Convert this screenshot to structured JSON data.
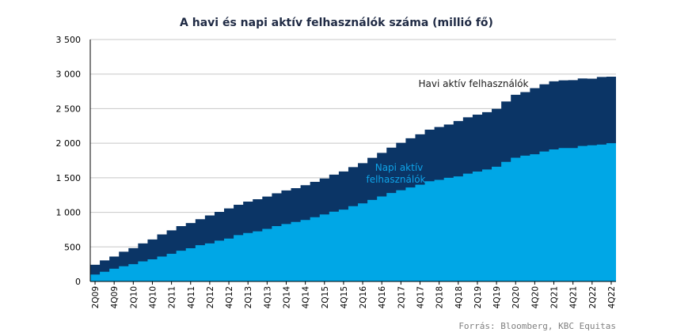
{
  "colors": {
    "mau": "#0b3566",
    "dau": "#00a7e6",
    "grid": "#c8c8c8"
  },
  "chart_data": {
    "type": "area",
    "title": "A havi és napi aktív felhasználók száma (millió fő)",
    "source": "Forrás: Bloomberg, KBC Equitas",
    "ylim": [
      0,
      3500
    ],
    "yticks": [
      "0",
      "500",
      "1 000",
      "1 500",
      "2 000",
      "2 500",
      "3 000",
      "3 500"
    ],
    "ytick_values": [
      0,
      500,
      1000,
      1500,
      2000,
      2500,
      3000,
      3500
    ],
    "x": [
      "2Q09",
      "3Q09",
      "4Q09",
      "1Q10",
      "2Q10",
      "3Q10",
      "4Q10",
      "1Q11",
      "2Q11",
      "3Q11",
      "4Q11",
      "1Q12",
      "2Q12",
      "3Q12",
      "4Q12",
      "1Q13",
      "2Q13",
      "3Q13",
      "4Q13",
      "1Q14",
      "2Q14",
      "3Q14",
      "4Q14",
      "1Q15",
      "2Q15",
      "3Q15",
      "4Q15",
      "1Q16",
      "2Q16",
      "3Q16",
      "4Q16",
      "1Q17",
      "2Q17",
      "3Q17",
      "4Q17",
      "1Q18",
      "2Q18",
      "3Q18",
      "4Q18",
      "1Q19",
      "2Q19",
      "3Q19",
      "4Q19",
      "1Q20",
      "2Q20",
      "3Q20",
      "4Q20",
      "1Q21",
      "2Q21",
      "3Q21",
      "4Q21",
      "1Q22",
      "2Q22",
      "3Q22",
      "4Q22"
    ],
    "xtick_labels": [
      "2Q09",
      "4Q09",
      "2Q10",
      "4Q10",
      "2Q11",
      "4Q11",
      "2Q12",
      "4Q12",
      "2Q13",
      "4Q13",
      "2Q14",
      "4Q14",
      "2Q15",
      "4Q15",
      "2Q16",
      "4Q16",
      "2Q17",
      "4Q17",
      "2Q18",
      "4Q18",
      "2Q19",
      "4Q19",
      "2Q20",
      "4Q20",
      "2Q21",
      "4Q21",
      "2Q22",
      "4Q22"
    ],
    "series": [
      {
        "name": "Havi aktív felhasználók",
        "values": [
          242,
          305,
          360,
          431,
          482,
          550,
          608,
          680,
          739,
          800,
          845,
          901,
          955,
          1007,
          1056,
          1110,
          1155,
          1189,
          1228,
          1276,
          1317,
          1350,
          1393,
          1441,
          1490,
          1545,
          1591,
          1654,
          1712,
          1788,
          1860,
          1936,
          2006,
          2072,
          2129,
          2196,
          2234,
          2271,
          2320,
          2375,
          2414,
          2449,
          2498,
          2603,
          2701,
          2740,
          2797,
          2853,
          2895,
          2910,
          2912,
          2936,
          2934,
          2958,
          2963
        ]
      },
      {
        "name": "Napi aktív felhasználók",
        "values": [
          100,
          140,
          185,
          220,
          250,
          290,
          320,
          360,
          400,
          445,
          480,
          525,
          550,
          590,
          620,
          670,
          700,
          725,
          760,
          800,
          830,
          860,
          890,
          930,
          970,
          1010,
          1040,
          1090,
          1130,
          1180,
          1230,
          1280,
          1320,
          1360,
          1400,
          1450,
          1470,
          1500,
          1520,
          1560,
          1590,
          1620,
          1660,
          1730,
          1790,
          1820,
          1840,
          1880,
          1910,
          1930,
          1930,
          1960,
          1970,
          1980,
          2000
        ]
      }
    ],
    "annotations": {
      "mau_label": "Havi aktív felhasználók",
      "dau_label_1": "Napi aktív",
      "dau_label_2": "felhasználók"
    },
    "grid": true,
    "legend": "inline labels"
  }
}
